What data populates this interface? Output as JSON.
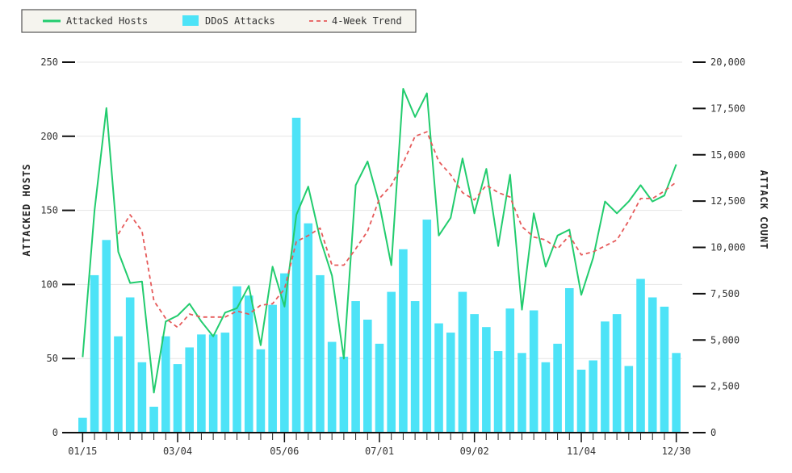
{
  "chart_data": {
    "type": "bar+line",
    "x_tick_labels": [
      "01/15",
      "03/04",
      "05/06",
      "07/01",
      "09/02",
      "11/04",
      "12/30"
    ],
    "left_axis": {
      "label": "ATTACKED HOSTS",
      "ylim": [
        0,
        250
      ],
      "ticks": [
        "0",
        "50",
        "100",
        "150",
        "200",
        "250"
      ]
    },
    "right_axis": {
      "label": "ATTACK COUNT",
      "ylim": [
        0,
        20000
      ],
      "ticks": [
        "0",
        "2,500",
        "5,000",
        "7,500",
        "10,000",
        "12,500",
        "15,000",
        "17,500",
        "20,000"
      ]
    },
    "grid": true,
    "legend_position": "top-left",
    "series": [
      {
        "name": "DDoS Attacks",
        "type": "bar",
        "axis": "right",
        "color": "#4de3f7",
        "values": [
          800,
          8500,
          10400,
          5200,
          7300,
          3800,
          1400,
          5200,
          3700,
          4600,
          5300,
          5300,
          5400,
          7900,
          7400,
          4500,
          6900,
          8600,
          17000,
          11300,
          8500,
          4900,
          4100,
          7100,
          6100,
          4800,
          7600,
          9900,
          7100,
          11500,
          5900,
          5400,
          7600,
          6400,
          5700,
          4400,
          6700,
          4300,
          6600,
          3800,
          4800,
          7800,
          3400,
          3900,
          6000,
          6400,
          3600,
          8300,
          7300,
          6800,
          4300
        ]
      },
      {
        "name": "Attacked Hosts",
        "type": "line",
        "axis": "left",
        "color": "#22cc6e",
        "values": [
          51,
          150,
          219,
          122,
          101,
          102,
          27,
          75,
          79,
          87,
          75,
          65,
          81,
          84,
          99,
          59,
          112,
          85,
          147,
          166,
          131,
          106,
          50,
          167,
          183,
          154,
          113,
          232,
          213,
          229,
          133,
          145,
          185,
          148,
          178,
          126,
          174,
          83,
          148,
          112,
          133,
          137,
          93,
          118,
          156,
          148,
          156,
          167,
          156,
          160,
          181
        ]
      },
      {
        "name": "4-Week Trend",
        "type": "line",
        "axis": "left",
        "color": "#e65a5a",
        "dashed": true,
        "start_index": 3,
        "values": [
          134,
          147,
          136,
          89,
          77,
          71,
          80,
          78,
          78,
          78,
          82,
          80,
          86,
          87,
          97,
          129,
          133,
          138,
          113,
          113,
          124,
          136,
          158,
          167,
          182,
          200,
          203,
          183,
          174,
          162,
          157,
          167,
          162,
          159,
          139,
          132,
          130,
          124,
          133,
          120,
          122,
          126,
          130,
          143,
          158,
          158,
          163,
          169
        ]
      }
    ]
  }
}
